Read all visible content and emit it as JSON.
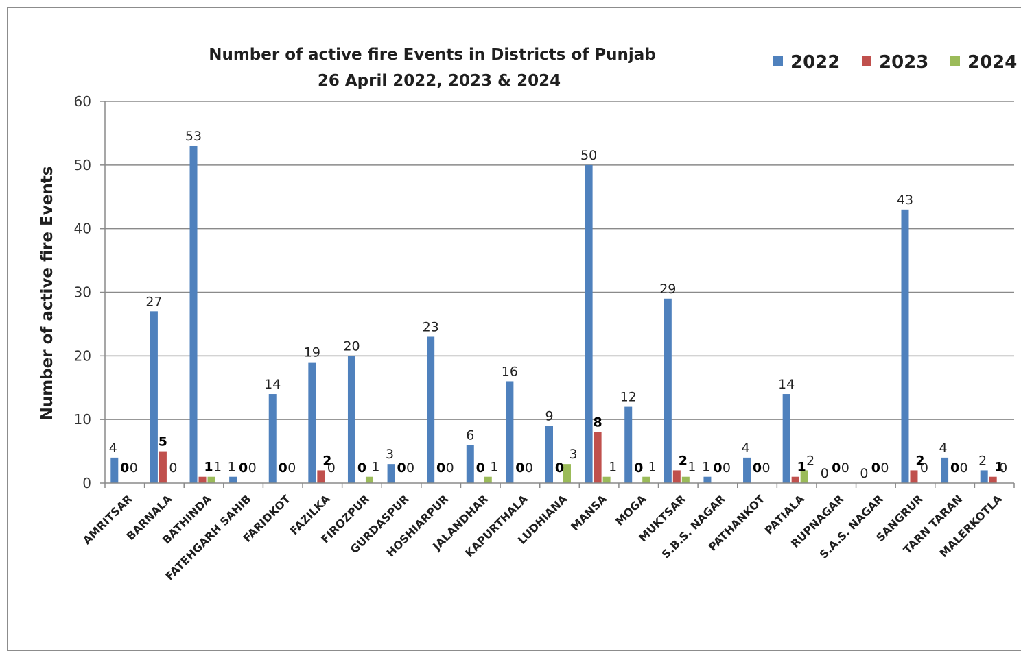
{
  "chart_data": {
    "type": "bar",
    "title": "Number of active fire Events in Districts of Punjab",
    "subtitle": "26 April 2022, 2023 & 2024",
    "xlabel": "",
    "ylabel": "Number of active fire Events",
    "ylim": [
      0,
      60
    ],
    "yticks": [
      0,
      10,
      20,
      30,
      40,
      50,
      60
    ],
    "grid": true,
    "legend_position": "top-right",
    "categories": [
      "AMRITSAR",
      "BARNALA",
      "BATHINDA",
      "FATEHGARH SAHIB",
      "FARIDKOT",
      "FAZILKA",
      "FIROZPUR",
      "GURDASPUR",
      "HOSHIARPUR",
      "JALANDHAR",
      "KAPURTHALA",
      "LUDHIANA",
      "MANSA",
      "MOGA",
      "MUKTSAR",
      "S.B.S. NAGAR",
      "PATHANKOT",
      "PATIALA",
      "RUPNAGAR",
      "S.A.S. NAGAR",
      "SANGRUR",
      "TARN TARAN",
      "MALERKOTLA"
    ],
    "series": [
      {
        "name": "2022",
        "color": "#4f81bd",
        "label_bold": false,
        "values": [
          4,
          27,
          53,
          1,
          14,
          19,
          20,
          3,
          23,
          6,
          16,
          9,
          50,
          12,
          29,
          1,
          4,
          14,
          0,
          0,
          43,
          4,
          2
        ]
      },
      {
        "name": "2023",
        "color": "#c0504d",
        "label_bold": true,
        "values": [
          0,
          5,
          1,
          0,
          0,
          2,
          0,
          0,
          0,
          0,
          0,
          0,
          8,
          0,
          2,
          0,
          0,
          1,
          0,
          0,
          2,
          0,
          1
        ]
      },
      {
        "name": "2024",
        "color": "#9bbb59",
        "label_bold": false,
        "values": [
          0,
          0,
          1,
          0,
          0,
          0,
          1,
          0,
          0,
          1,
          0,
          3,
          1,
          1,
          1,
          0,
          0,
          2,
          0,
          0,
          0,
          0,
          0
        ]
      }
    ]
  }
}
